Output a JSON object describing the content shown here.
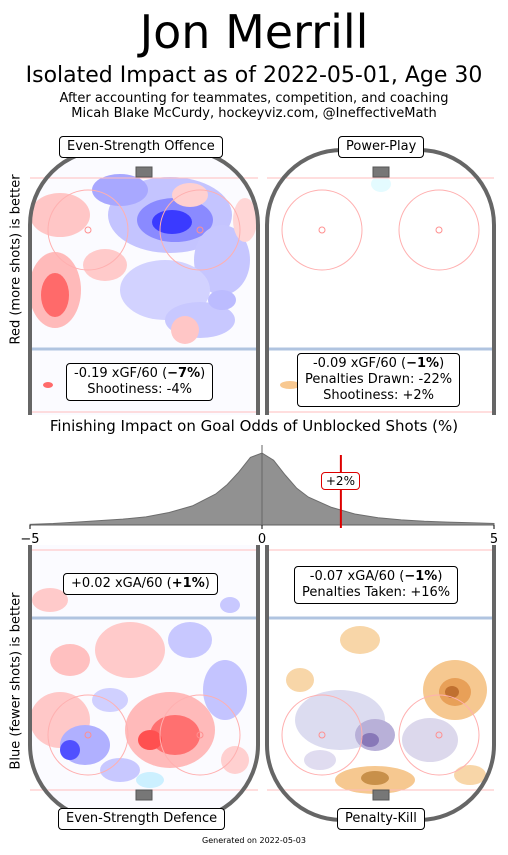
{
  "header": {
    "title": "Jon Merrill",
    "subtitle": "Isolated Impact as of 2022-05-01, Age 30",
    "note_line1": "After accounting for teammates, competition, and coaching",
    "note_line2": "Micah Blake McCurdy, hockeyviz.com, @IneffectiveMath"
  },
  "side_labels": {
    "offence": "Red (more shots) is better",
    "defence": "Blue (fewer shots) is better"
  },
  "panels": {
    "ev_offence": {
      "label": "Even-Strength Offence",
      "stat_value": "-0.19 xGF/60 (",
      "stat_pct": "−7%",
      "stat_close": ")",
      "extra": [
        "Shootiness: -4%"
      ]
    },
    "power_play": {
      "label": "Power-Play",
      "stat_value": "-0.09 xGF/60 (",
      "stat_pct": "−1%",
      "stat_close": ")",
      "extra": [
        "Penalties Drawn: -22%",
        "Shootiness: +2%"
      ]
    },
    "ev_defence": {
      "label": "Even-Strength Defence",
      "stat_value": "+0.02 xGA/60 (",
      "stat_pct": "+1%",
      "stat_close": ")",
      "extra": []
    },
    "penalty_kill": {
      "label": "Penalty-Kill",
      "stat_value": "-0.07 xGA/60 (",
      "stat_pct": "−1%",
      "stat_close": ")",
      "extra": [
        "Penalties Taken: +16%"
      ]
    }
  },
  "colors": {
    "rink_border": "#666666",
    "more_shots": "#ff5a5a",
    "fewer_shots": "#3030ff",
    "pk_fill": "#f0a040",
    "marker": "#dd0000",
    "density": "#888888"
  },
  "chart_data": {
    "type": "area",
    "title": "Finishing Impact on Goal Odds of Unblocked Shots (%)",
    "xlim": [
      -5,
      5
    ],
    "x_ticks": [
      "−5",
      "0",
      "5"
    ],
    "marker": {
      "x": 1.7,
      "label": "+2%"
    },
    "x": [
      -5,
      -4.5,
      -4,
      -3.5,
      -3,
      -2.5,
      -2,
      -1.5,
      -1,
      -0.75,
      -0.5,
      -0.25,
      0,
      0.25,
      0.5,
      0.75,
      1,
      1.5,
      2,
      2.5,
      3,
      3.5,
      4,
      4.5,
      5
    ],
    "y": [
      0.01,
      0.02,
      0.04,
      0.06,
      0.08,
      0.11,
      0.17,
      0.26,
      0.42,
      0.55,
      0.72,
      0.92,
      0.98,
      0.88,
      0.68,
      0.5,
      0.38,
      0.24,
      0.15,
      0.1,
      0.07,
      0.05,
      0.04,
      0.03,
      0.02
    ]
  },
  "footer": "Generated on 2022-05-03"
}
